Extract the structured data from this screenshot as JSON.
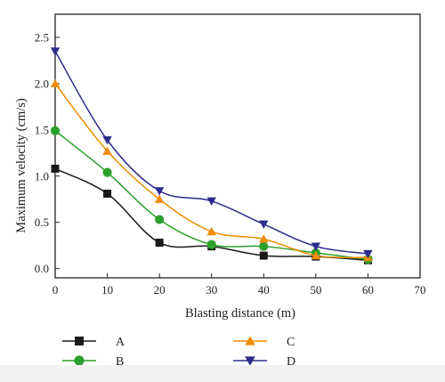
{
  "chart_data": {
    "type": "line",
    "xlabel": "Blasting distance (m)",
    "ylabel": "Maximum velocity (cm/s)",
    "xlim": [
      0,
      70
    ],
    "ylim": [
      -0.1,
      2.75
    ],
    "xticks": [
      0,
      10,
      20,
      30,
      40,
      50,
      60,
      70
    ],
    "yticks": [
      0.0,
      0.5,
      1.0,
      1.5,
      2.0,
      2.5
    ],
    "ytick_labels": [
      "0.0",
      "0.5",
      "1.0",
      "1.5",
      "2.0",
      "2.5"
    ],
    "grid": false,
    "legend_position": "bottom",
    "x": [
      0,
      10,
      20,
      30,
      40,
      50,
      60
    ],
    "series": [
      {
        "name": "A",
        "color": "#1a1a1a",
        "marker": "square",
        "values": [
          1.08,
          0.81,
          0.28,
          0.24,
          0.14,
          0.13,
          0.09
        ]
      },
      {
        "name": "B",
        "color": "#2ca02c",
        "marker": "circle",
        "values": [
          1.49,
          1.04,
          0.53,
          0.26,
          0.24,
          0.17,
          0.1
        ]
      },
      {
        "name": "C",
        "color": "#f08c00",
        "marker": "triangle-up",
        "values": [
          2.0,
          1.27,
          0.75,
          0.4,
          0.32,
          0.14,
          0.12
        ]
      },
      {
        "name": "D",
        "color": "#2b2b8c",
        "marker": "triangle-down",
        "values": [
          2.35,
          1.39,
          0.84,
          0.73,
          0.48,
          0.24,
          0.16
        ]
      }
    ]
  }
}
